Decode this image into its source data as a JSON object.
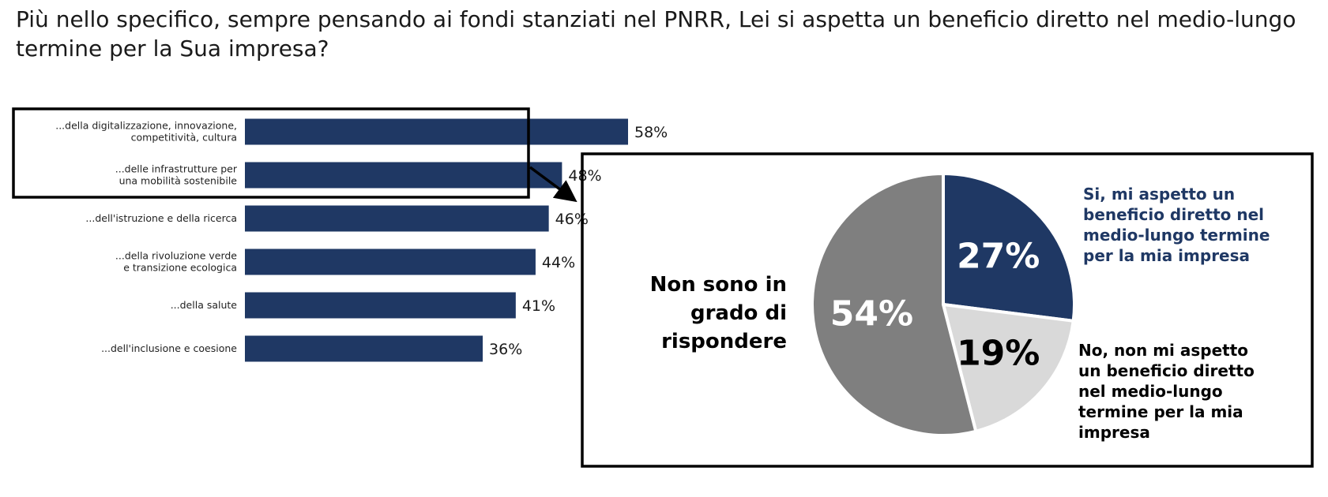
{
  "page": {
    "title": "Più nello specifico, sempre pensando ai fondi stanziati nel PNRR, Lei si aspetta un beneficio diretto nel medio-lungo termine per la Sua impresa?"
  },
  "colors": {
    "navy": "#1f3864",
    "dark_gray": "#7f7f7f",
    "light_gray": "#d9d9d9",
    "text": "#000000"
  },
  "chart_data": [
    {
      "type": "bar",
      "orientation": "horizontal",
      "categories": [
        [
          "...della digitalizzazione, innovazione,",
          "competitività, cultura"
        ],
        [
          "...delle infrastrutture per",
          "una mobilità sostenibile"
        ],
        [
          "...dell'istruzione e della ricerca"
        ],
        [
          "...della rivoluzione verde",
          "e transizione ecologica"
        ],
        [
          "...della salute"
        ],
        [
          "...dell'inclusione e coesione"
        ]
      ],
      "values": [
        58,
        48,
        46,
        44,
        41,
        36
      ],
      "value_labels": [
        "58%",
        "48%",
        "46%",
        "44%",
        "41%",
        "36%"
      ],
      "color": "#1f3864",
      "highlighted_categories": [
        0,
        1
      ]
    },
    {
      "type": "pie",
      "slices": [
        {
          "value": 27,
          "value_label": "27%",
          "label_lines": [
            "Si, mi aspetto un",
            "beneficio diretto nel",
            "medio-lungo termine",
            "per la mia impresa"
          ],
          "color": "#1f3864",
          "label_color": "#1f3864"
        },
        {
          "value": 19,
          "value_label": "19%",
          "label_lines": [
            "No, non mi aspetto",
            "un beneficio diretto",
            "nel medio-lungo",
            "termine per la mia",
            "impresa"
          ],
          "color": "#d9d9d9",
          "label_color": "#000000"
        },
        {
          "value": 54,
          "value_label": "54%",
          "label_lines": [
            "Non sono in",
            "grado di",
            "rispondere"
          ],
          "color": "#7f7f7f",
          "label_color": "#000000"
        }
      ]
    }
  ]
}
